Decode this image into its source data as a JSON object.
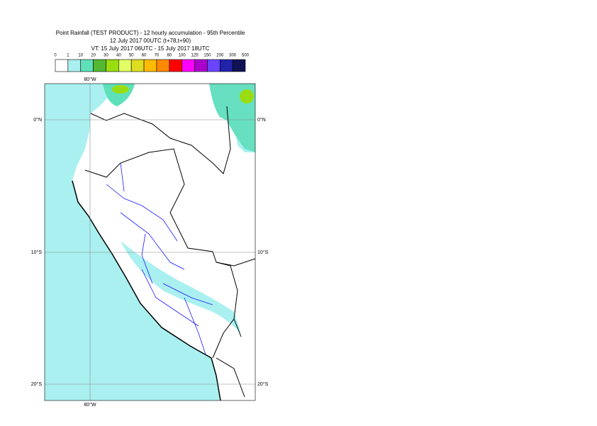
{
  "header": {
    "title": "Point Rainfall (TEST PRODUCT) - 12 hourly accumulation - 95th Percentile",
    "run": "12 July 2017 00UTC (t+78,t+90)",
    "valid": "VT: 15 July 2017 06UTC - 15 July 2017 18UTC"
  },
  "legend": {
    "labels": [
      0,
      1,
      10,
      20,
      30,
      40,
      50,
      60,
      70,
      80,
      100,
      125,
      150,
      200,
      300,
      500
    ],
    "colors": [
      "#ffffff",
      "#aaf0f0",
      "#5ee0b8",
      "#55b833",
      "#99dd11",
      "#e2ff66",
      "#dddd22",
      "#ffbb00",
      "#ff8800",
      "#ff0000",
      "#ff00ff",
      "#aa00cc",
      "#6a44ff",
      "#2222aa",
      "#111155"
    ]
  },
  "map": {
    "lon_labels": [
      "80°W"
    ],
    "lat_labels": [
      "0°N",
      "10°S",
      "20°S"
    ]
  }
}
